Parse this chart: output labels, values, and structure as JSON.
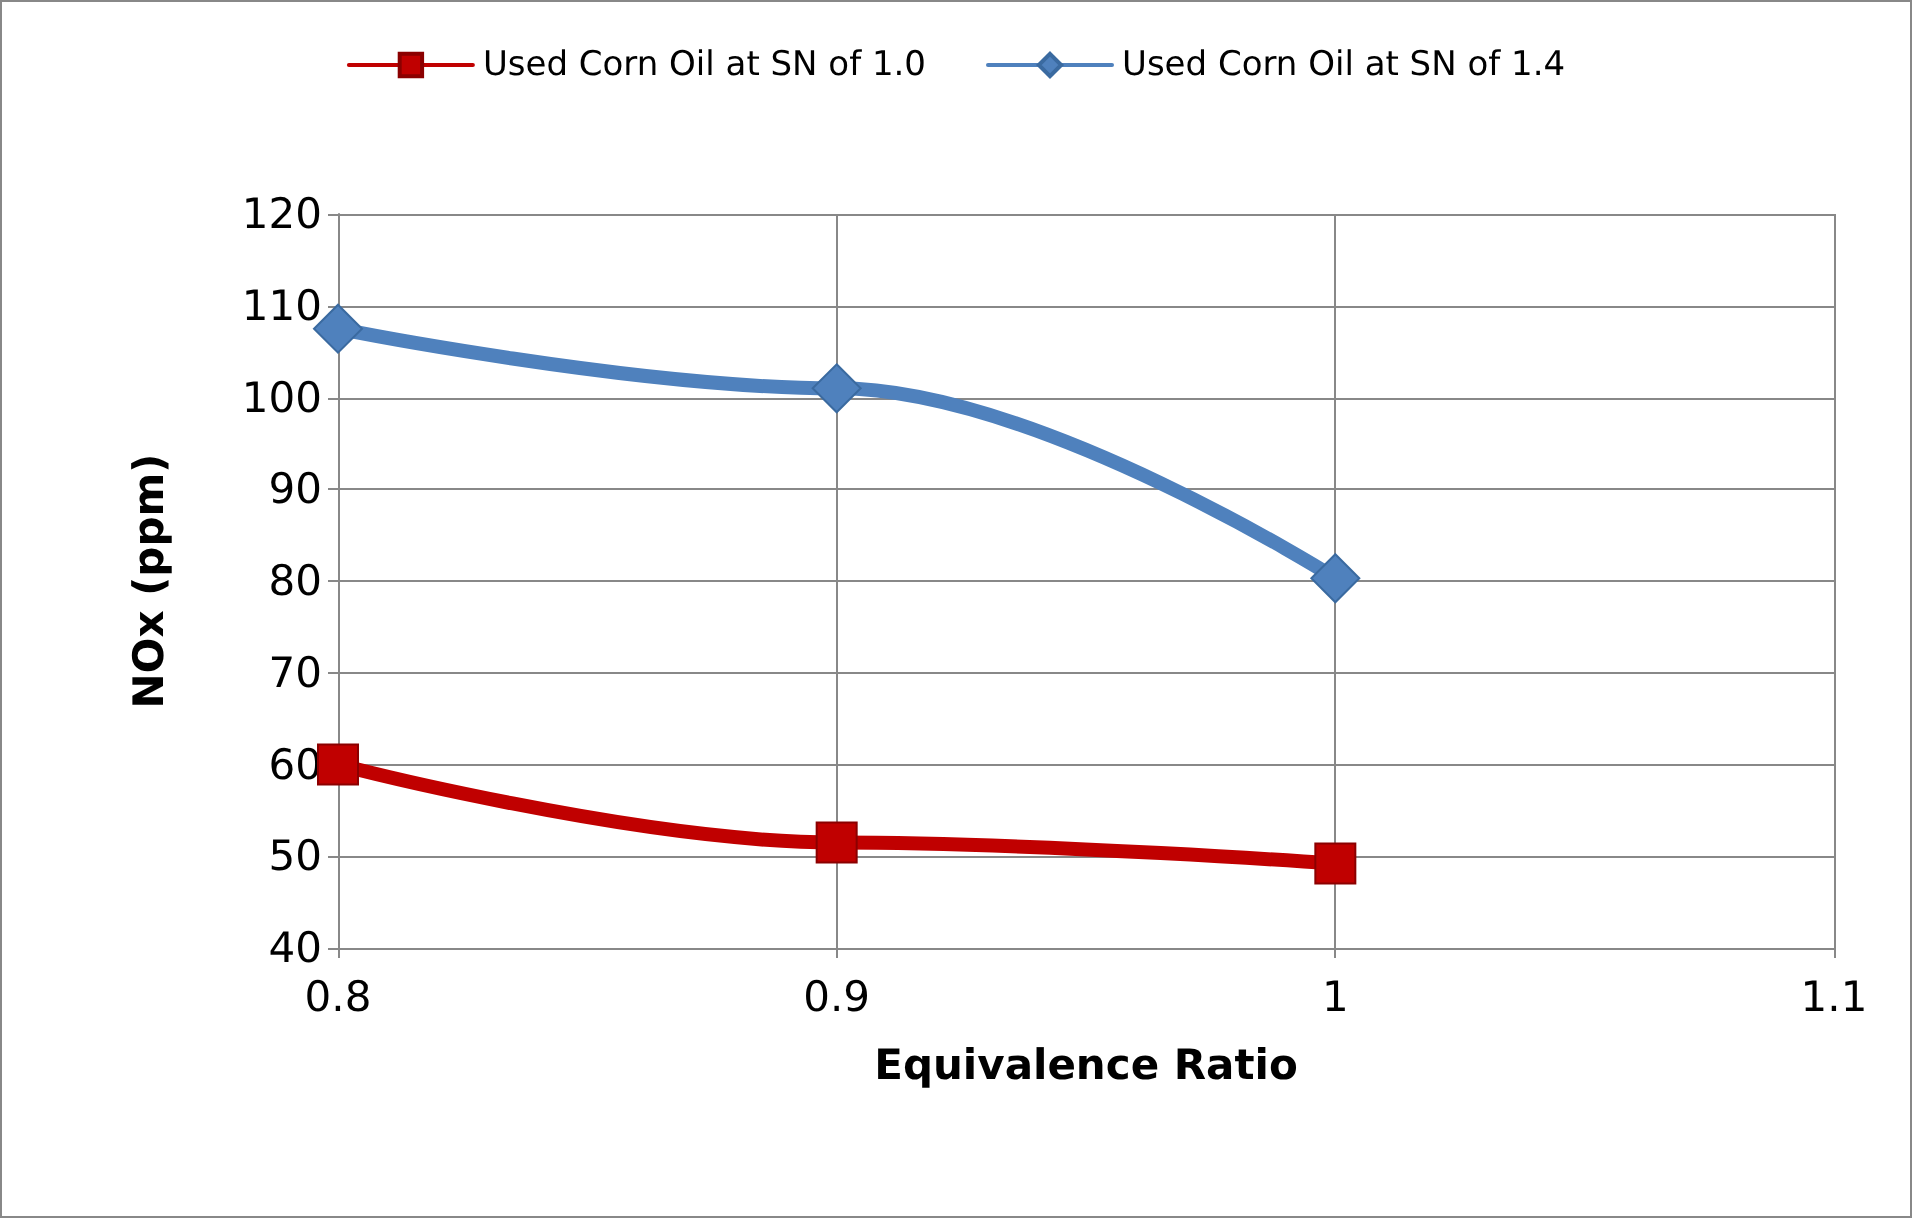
{
  "chart_data": {
    "type": "line",
    "xlabel": "Equivalence Ratio",
    "ylabel": "NOx (ppm)",
    "x": [
      0.8,
      0.9,
      1.0
    ],
    "series": [
      {
        "name": "Used Corn Oil at SN of 1.0",
        "color": "#c00000",
        "marker": "square",
        "values": [
          60,
          51.5,
          49.2
        ]
      },
      {
        "name": "Used Corn Oil at SN of 1.4",
        "color": "#4f81bd",
        "marker": "diamond",
        "values": [
          107.5,
          101,
          80.3
        ]
      }
    ],
    "xlim": [
      0.8,
      1.1
    ],
    "xticks": [
      0.8,
      0.9,
      1,
      1.1
    ],
    "ylim": [
      40,
      120
    ],
    "yticks": [
      40,
      50,
      60,
      70,
      80,
      90,
      100,
      110,
      120
    ],
    "grid": true,
    "legend": "top",
    "line_style": "solid"
  }
}
